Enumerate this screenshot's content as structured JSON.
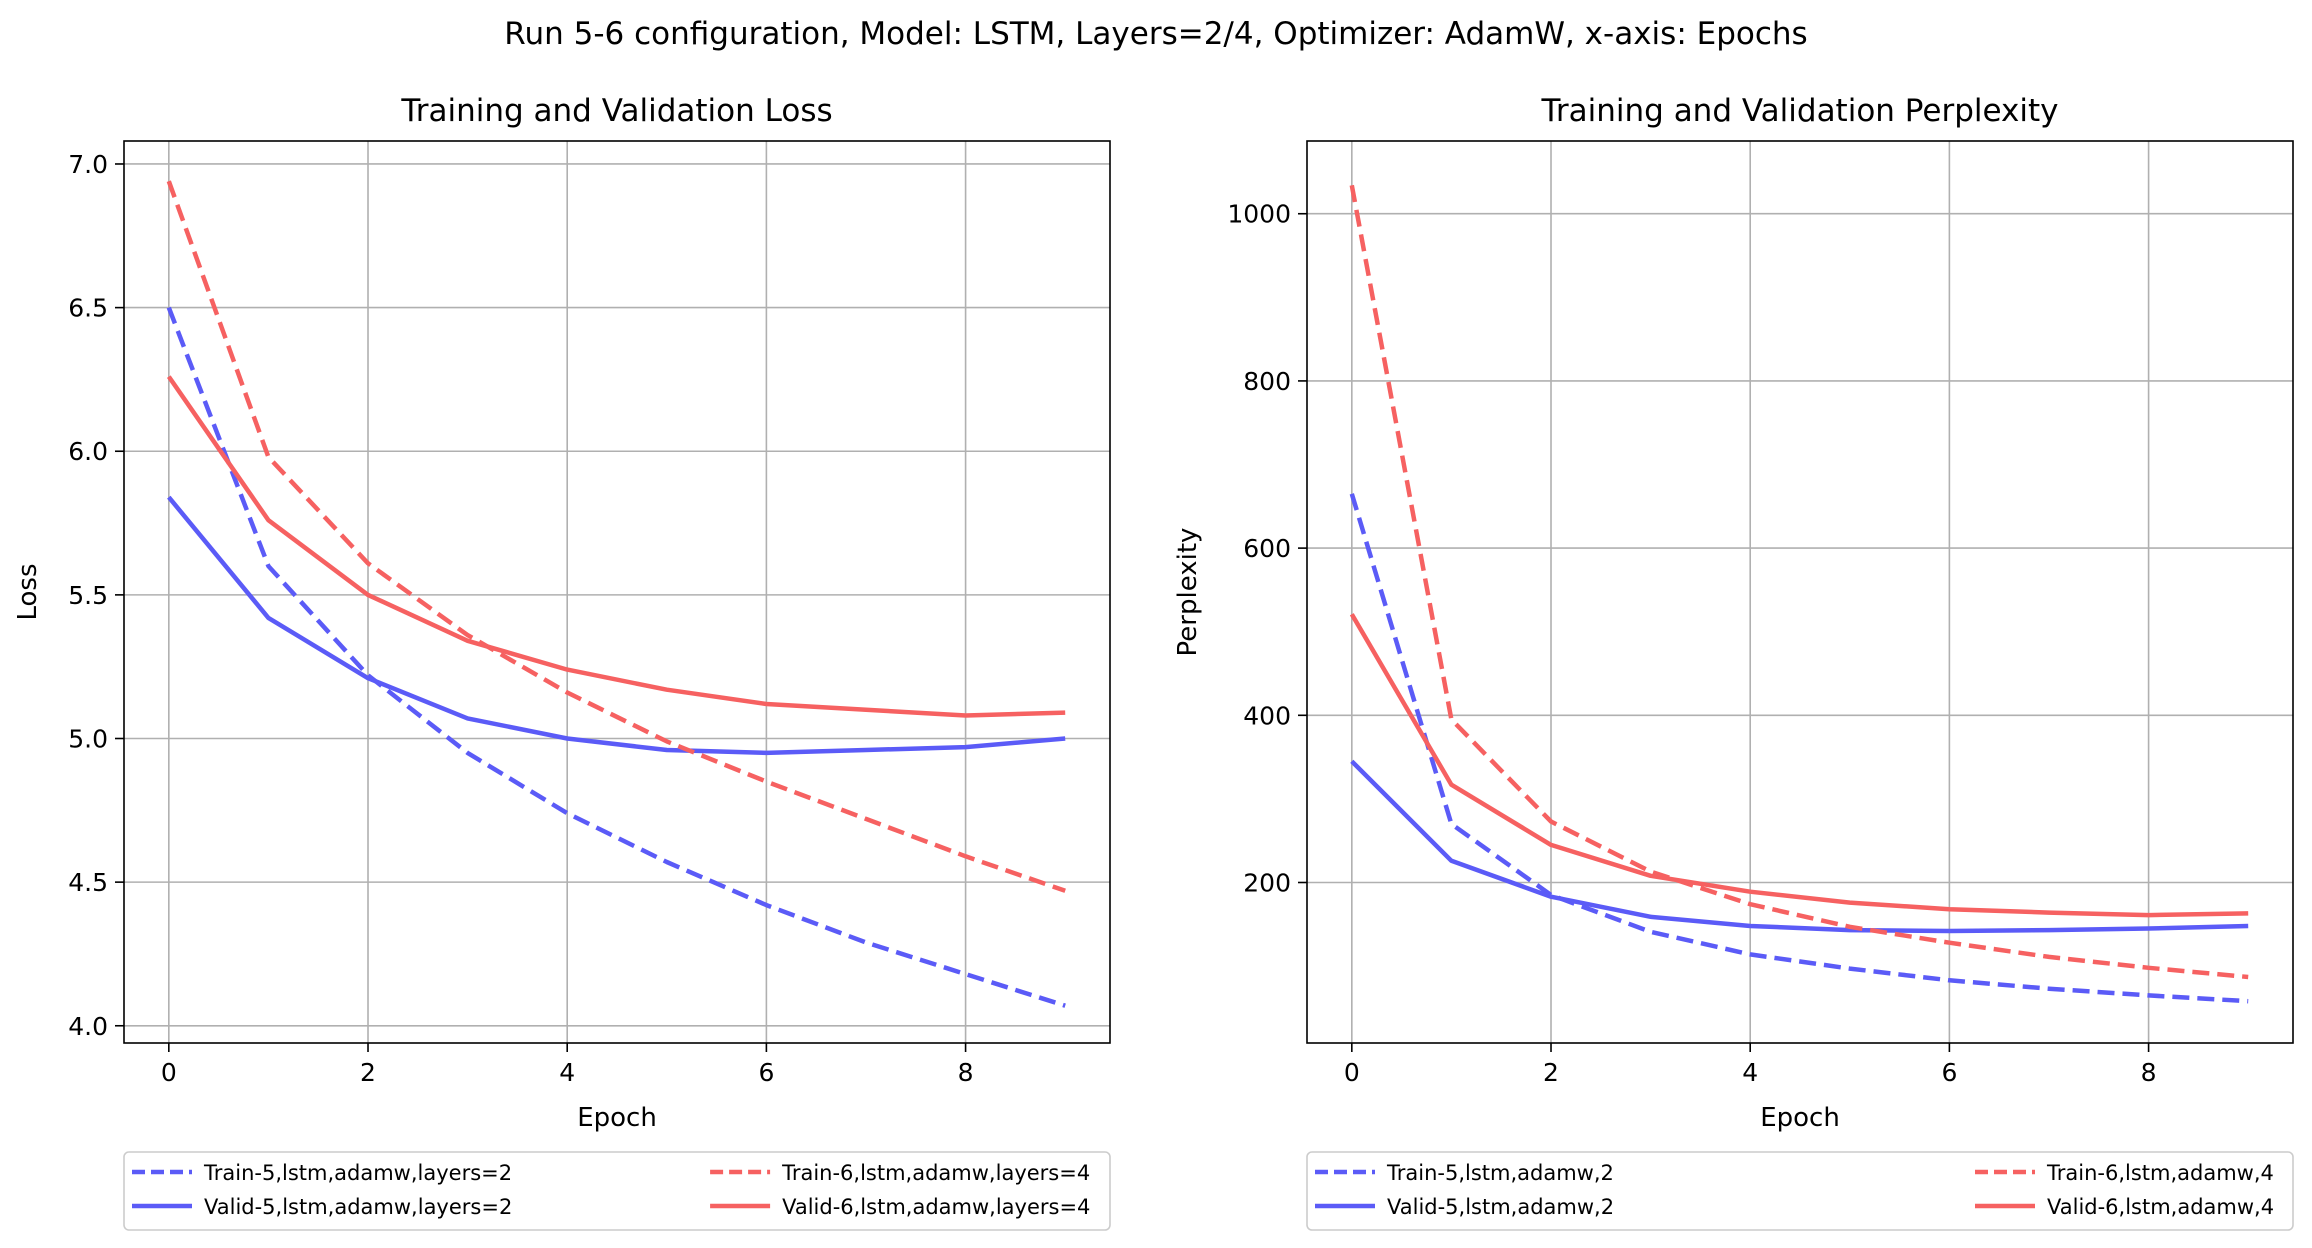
{
  "suptitle": "Run 5-6 configuration, Model: LSTM, Layers=2/4, Optimizer: AdamW, x-axis: Epochs",
  "colors": {
    "blue": "#5b5bf7",
    "red": "#f66161",
    "grid": "#b0b0b0"
  },
  "chart_data": [
    {
      "type": "line",
      "title": "Training and Validation Loss",
      "xlabel": "Epoch",
      "ylabel": "Loss",
      "xlim": [
        -0.45,
        9.45
      ],
      "ylim": [
        3.94,
        7.08
      ],
      "xticks": [
        0,
        2,
        4,
        6,
        8
      ],
      "yticks": [
        4.0,
        4.5,
        5.0,
        5.5,
        6.0,
        6.5,
        7.0
      ],
      "ytick_labels": [
        "4.0",
        "4.5",
        "5.0",
        "5.5",
        "6.0",
        "6.5",
        "7.0"
      ],
      "grid": true,
      "legend_position": "below, two columns",
      "x": [
        0,
        1,
        2,
        3,
        4,
        5,
        6,
        7,
        8,
        9
      ],
      "series": [
        {
          "name": "Train-5,lstm,adamw,layers=2",
          "color": "blue",
          "dash": true,
          "values": [
            6.5,
            5.6,
            5.22,
            4.95,
            4.74,
            4.57,
            4.42,
            4.29,
            4.18,
            4.07
          ]
        },
        {
          "name": "Valid-5,lstm,adamw,layers=2",
          "color": "blue",
          "dash": false,
          "values": [
            5.84,
            5.42,
            5.21,
            5.07,
            5.0,
            4.96,
            4.95,
            4.96,
            4.97,
            5.0
          ]
        },
        {
          "name": "Train-6,lstm,adamw,layers=4",
          "color": "red",
          "dash": true,
          "values": [
            6.94,
            5.98,
            5.61,
            5.36,
            5.16,
            4.99,
            4.85,
            4.72,
            4.59,
            4.47
          ]
        },
        {
          "name": "Valid-6,lstm,adamw,layers=4",
          "color": "red",
          "dash": false,
          "values": [
            6.26,
            5.76,
            5.5,
            5.34,
            5.24,
            5.17,
            5.12,
            5.1,
            5.08,
            5.09
          ]
        }
      ]
    },
    {
      "type": "line",
      "title": "Training and Validation Perplexity",
      "xlabel": "Epoch",
      "ylabel": "Perplexity",
      "xlim": [
        -0.45,
        9.45
      ],
      "ylim": [
        8,
        1087
      ],
      "xticks": [
        0,
        2,
        4,
        6,
        8
      ],
      "yticks": [
        200,
        400,
        600,
        800,
        1000
      ],
      "ytick_labels": [
        "200",
        "400",
        "600",
        "800",
        "1000"
      ],
      "grid": true,
      "legend_position": "below, two columns",
      "x": [
        0,
        1,
        2,
        3,
        4,
        5,
        6,
        7,
        8,
        9
      ],
      "series": [
        {
          "name": "Train-5,lstm,adamw,2",
          "color": "blue",
          "dash": true,
          "values": [
            665,
            270,
            185,
            141,
            114,
            97,
            83,
            73,
            65,
            58
          ]
        },
        {
          "name": "Valid-5,lstm,adamw,2",
          "color": "blue",
          "dash": false,
          "values": [
            345,
            226,
            183,
            159,
            148,
            143,
            142,
            143,
            145,
            148
          ]
        },
        {
          "name": "Train-6,lstm,adamw,4",
          "color": "red",
          "dash": true,
          "values": [
            1034,
            395,
            273,
            213,
            174,
            147,
            128,
            111,
            98,
            87
          ]
        },
        {
          "name": "Valid-6,lstm,adamw,4",
          "color": "red",
          "dash": false,
          "values": [
            521,
            317,
            245,
            208,
            189,
            176,
            168,
            164,
            161,
            163
          ]
        }
      ]
    }
  ]
}
